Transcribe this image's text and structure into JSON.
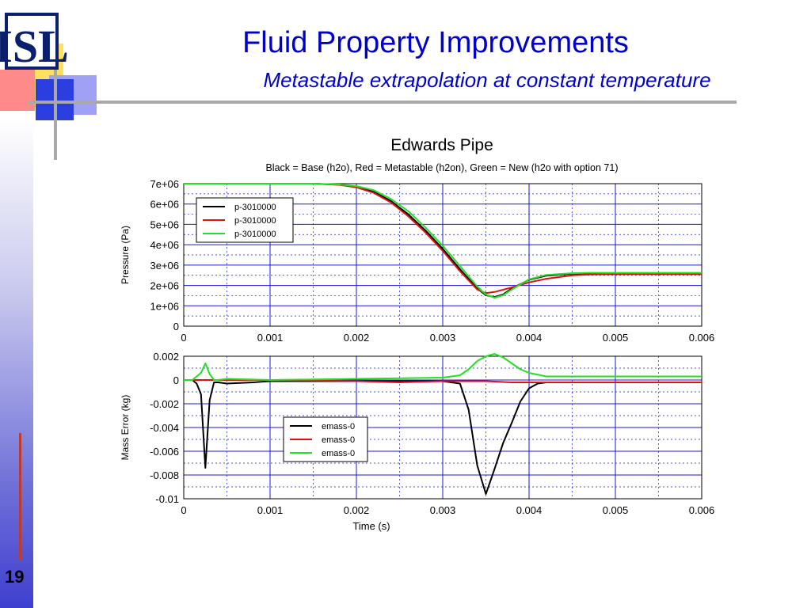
{
  "slide": {
    "logo_text": "ISL",
    "title": "Fluid Property Improvements",
    "subtitle": "Metastable extrapolation at constant temperature",
    "number": "19"
  },
  "colors": {
    "title": "#0000cc",
    "black": "#000000",
    "red": "#dd1111",
    "green": "#22e022",
    "grid": "#1a1ad6"
  },
  "chart_data": [
    {
      "type": "line",
      "title": "Edwards Pipe",
      "subtitle": "Black = Base (h2o), Red = Metastable (h2on), Green = New (h2o with option 71)",
      "xlabel": "",
      "ylabel": "Pressure (Pa)",
      "xlim": [
        0,
        0.006
      ],
      "ylim": [
        0,
        7000000
      ],
      "xticks": [
        0,
        0.001,
        0.002,
        0.003,
        0.004,
        0.005,
        0.006
      ],
      "xtick_labels": [
        "0",
        "0.001",
        "0.002",
        "0.003",
        "0.004",
        "0.005",
        "0.006"
      ],
      "yticks": [
        0,
        1000000,
        2000000,
        3000000,
        4000000,
        5000000,
        6000000,
        7000000
      ],
      "ytick_labels": [
        "0",
        "1e+06",
        "2e+06",
        "3e+06",
        "4e+06",
        "5e+06",
        "6e+06",
        "7e+06"
      ],
      "grid": true,
      "legend": "top-left",
      "series": [
        {
          "name": "p-3010000",
          "color": "#000000",
          "x": [
            0,
            0.0015,
            0.0018,
            0.002,
            0.0022,
            0.0024,
            0.0026,
            0.0028,
            0.003,
            0.0032,
            0.0034,
            0.0035,
            0.0036,
            0.0037,
            0.0038,
            0.004,
            0.0042,
            0.0045,
            0.0047,
            0.005,
            0.006
          ],
          "y": [
            7000000,
            7000000,
            6950000,
            6850000,
            6600000,
            6150000,
            5500000,
            4700000,
            3800000,
            2800000,
            1850000,
            1520000,
            1430000,
            1560000,
            1850000,
            2280000,
            2480000,
            2580000,
            2600000,
            2600000,
            2600000
          ]
        },
        {
          "name": "p-3010000",
          "color": "#dd1111",
          "x": [
            0,
            0.0015,
            0.0018,
            0.002,
            0.0022,
            0.0024,
            0.0026,
            0.0028,
            0.003,
            0.0032,
            0.0034,
            0.0035,
            0.0036,
            0.0038,
            0.004,
            0.0042,
            0.0045,
            0.0047,
            0.005,
            0.006
          ],
          "y": [
            7000000,
            7000000,
            6940000,
            6820000,
            6550000,
            6080000,
            5400000,
            4600000,
            3700000,
            2700000,
            1800000,
            1620000,
            1680000,
            1900000,
            2150000,
            2330000,
            2500000,
            2540000,
            2550000,
            2550000
          ]
        },
        {
          "name": "p-3010000",
          "color": "#22e022",
          "x": [
            0,
            0.0015,
            0.0018,
            0.002,
            0.0022,
            0.0024,
            0.0026,
            0.0028,
            0.003,
            0.0032,
            0.0034,
            0.0035,
            0.0036,
            0.0037,
            0.0038,
            0.004,
            0.0042,
            0.0045,
            0.0047,
            0.005,
            0.006
          ],
          "y": [
            7000000,
            7000000,
            6960000,
            6880000,
            6680000,
            6250000,
            5650000,
            4850000,
            3950000,
            2950000,
            1950000,
            1550000,
            1400000,
            1520000,
            1800000,
            2300000,
            2520000,
            2600000,
            2620000,
            2620000,
            2620000
          ]
        }
      ]
    },
    {
      "type": "line",
      "title": "",
      "xlabel": "Time (s)",
      "ylabel": "Mass Error (kg)",
      "xlim": [
        0,
        0.006
      ],
      "ylim": [
        -0.01,
        0.002
      ],
      "xticks": [
        0,
        0.001,
        0.002,
        0.003,
        0.004,
        0.005,
        0.006
      ],
      "xtick_labels": [
        "0",
        "0.001",
        "0.002",
        "0.003",
        "0.004",
        "0.005",
        "0.006"
      ],
      "yticks": [
        0.002,
        0,
        -0.002,
        -0.004,
        -0.006,
        -0.008,
        -0.01
      ],
      "ytick_labels": [
        "0.002",
        "0",
        "-0.002",
        "-0.004",
        "-0.006",
        "-0.008",
        "-0.01"
      ],
      "grid": true,
      "legend": "center-left",
      "series": [
        {
          "name": "emass-0",
          "color": "#000000",
          "x": [
            0,
            0.0001,
            0.00015,
            0.0002,
            0.00025,
            0.0003,
            0.00035,
            0.0004,
            0.0005,
            0.0008,
            0.001,
            0.002,
            0.003,
            0.0032,
            0.0033,
            0.0034,
            0.0035,
            0.0036,
            0.0037,
            0.0038,
            0.0039,
            0.004,
            0.0041,
            0.0042,
            0.005,
            0.006
          ],
          "y": [
            0,
            0,
            -0.0003,
            -0.0012,
            -0.0074,
            -0.0017,
            -0.0002,
            -0.0002,
            -0.0003,
            -0.0002,
            -0.0001,
            -0.0001,
            -0.0001,
            -0.0003,
            -0.0025,
            -0.0072,
            -0.0096,
            -0.0075,
            -0.0053,
            -0.0036,
            -0.0018,
            -0.0007,
            -0.0003,
            -0.0002,
            -0.0002,
            -0.0002
          ]
        },
        {
          "name": "emass-0",
          "color": "#dd1111",
          "x": [
            0,
            0.001,
            0.002,
            0.0025,
            0.003,
            0.0035,
            0.0038,
            0.004,
            0.0042,
            0.005,
            0.006
          ],
          "y": [
            0,
            0,
            -0.0001,
            -0.0002,
            -0.0001,
            -0.0001,
            -0.0002,
            -0.0002,
            -0.0002,
            -0.0002,
            -0.0002
          ]
        },
        {
          "name": "emass-0",
          "color": "#22e022",
          "x": [
            0,
            0.0001,
            0.00015,
            0.0002,
            0.00025,
            0.0003,
            0.00035,
            0.0004,
            0.0005,
            0.001,
            0.002,
            0.003,
            0.0032,
            0.0033,
            0.0034,
            0.0035,
            0.0036,
            0.0037,
            0.0038,
            0.0039,
            0.004,
            0.0042,
            0.005,
            0.006
          ],
          "y": [
            0,
            0,
            0.0003,
            0.0006,
            0.0014,
            0.0005,
            0,
            0,
            0.0001,
            0,
            0.0001,
            0.0002,
            0.0004,
            0.0009,
            0.0016,
            0.002,
            0.0022,
            0.0019,
            0.0014,
            0.0009,
            0.0006,
            0.0003,
            0.0003,
            0.0003
          ]
        }
      ]
    }
  ]
}
